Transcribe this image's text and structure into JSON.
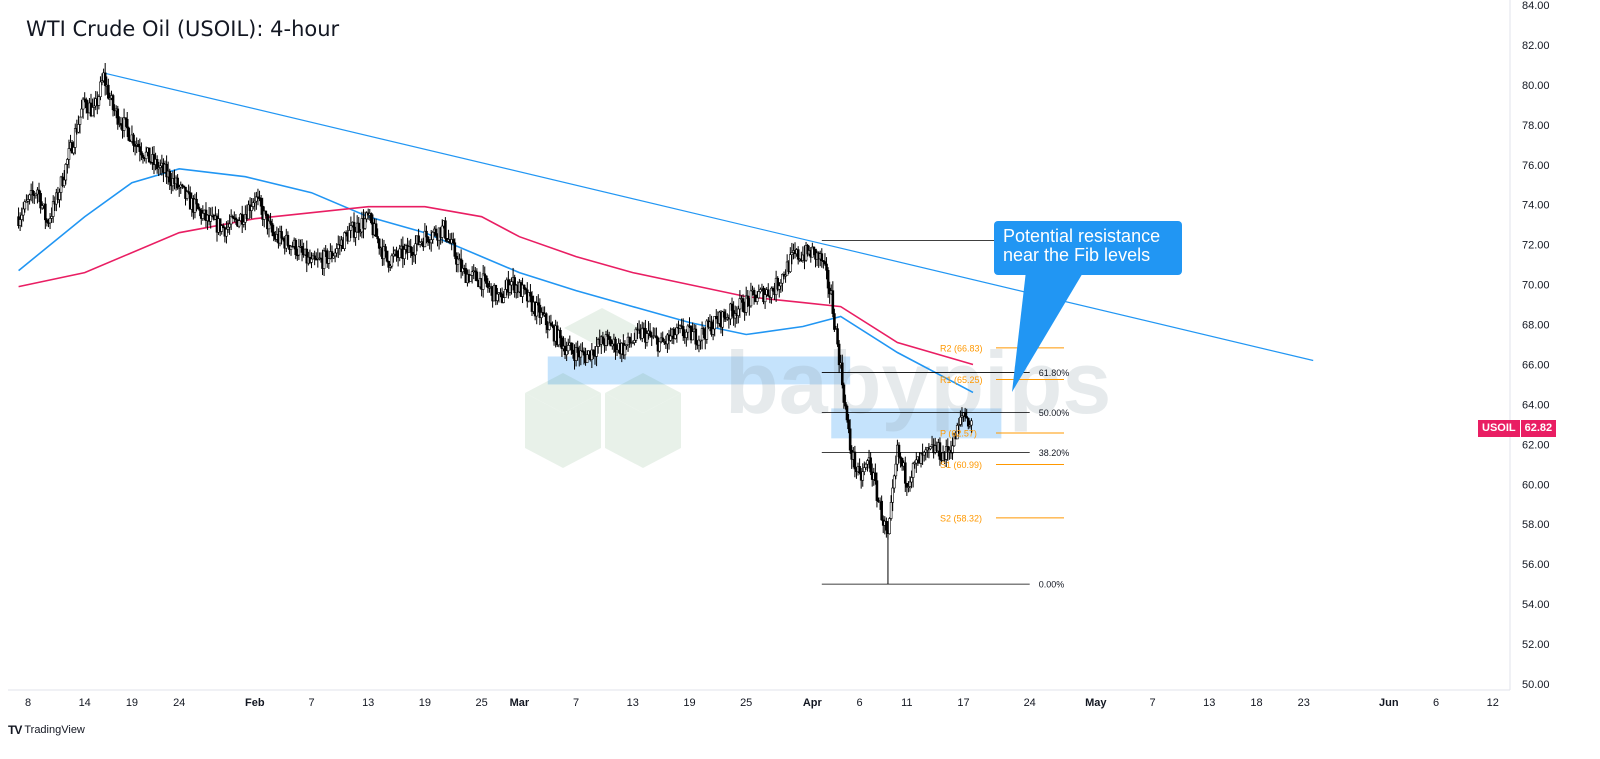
{
  "title": "WTI Crude Oil (USOIL): 4-hour",
  "brand": {
    "logo": "TV",
    "name": "TradingView"
  },
  "watermark": "babypips",
  "callout": {
    "line1": "Potential resistance",
    "line2": "near the Fib levels"
  },
  "last_price": {
    "symbol": "USOIL",
    "value": "62.82",
    "color": "#e91e63"
  },
  "colors": {
    "sma100": "#2196f3",
    "sma200": "#e91e63",
    "trendline": "#2196f3",
    "pivot": "#ff9800",
    "zone": "#bbdefb",
    "up": "#ffffff",
    "down": "#000000"
  },
  "chart_data": {
    "type": "candlestick",
    "title": "WTI Crude Oil (USOIL): 4-hour",
    "ylim": [
      50,
      84
    ],
    "y_ticks": [
      "50.00",
      "52.00",
      "54.00",
      "56.00",
      "58.00",
      "60.00",
      "62.00",
      "64.00",
      "66.00",
      "68.00",
      "70.00",
      "72.00",
      "74.00",
      "76.00",
      "78.00",
      "80.00",
      "82.00",
      "84.00"
    ],
    "x_ticks": [
      {
        "label": "8",
        "date": "2025-01-08"
      },
      {
        "label": "14",
        "date": "2025-01-14"
      },
      {
        "label": "19",
        "date": "2025-01-19"
      },
      {
        "label": "24",
        "date": "2025-01-24"
      },
      {
        "label": "Feb",
        "date": "2025-02-01"
      },
      {
        "label": "7",
        "date": "2025-02-07"
      },
      {
        "label": "13",
        "date": "2025-02-13"
      },
      {
        "label": "19",
        "date": "2025-02-19"
      },
      {
        "label": "25",
        "date": "2025-02-25"
      },
      {
        "label": "Mar",
        "date": "2025-03-01"
      },
      {
        "label": "7",
        "date": "2025-03-07"
      },
      {
        "label": "13",
        "date": "2025-03-13"
      },
      {
        "label": "19",
        "date": "2025-03-19"
      },
      {
        "label": "25",
        "date": "2025-03-25"
      },
      {
        "label": "Apr",
        "date": "2025-04-01"
      },
      {
        "label": "6",
        "date": "2025-04-06"
      },
      {
        "label": "11",
        "date": "2025-04-11"
      },
      {
        "label": "17",
        "date": "2025-04-17"
      },
      {
        "label": "24",
        "date": "2025-04-24"
      },
      {
        "label": "May",
        "date": "2025-05-01"
      },
      {
        "label": "7",
        "date": "2025-05-07"
      },
      {
        "label": "13",
        "date": "2025-05-13"
      },
      {
        "label": "18",
        "date": "2025-05-18"
      },
      {
        "label": "23",
        "date": "2025-05-23"
      },
      {
        "label": "Jun",
        "date": "2025-06-01"
      },
      {
        "label": "6",
        "date": "2025-06-06"
      },
      {
        "label": "12",
        "date": "2025-06-12"
      }
    ],
    "price_path": [
      [
        "2025-01-07",
        73.4
      ],
      [
        "2025-01-09",
        74.8
      ],
      [
        "2025-01-10",
        73.1
      ],
      [
        "2025-01-11",
        74.2
      ],
      [
        "2025-01-13",
        77.6
      ],
      [
        "2025-01-14",
        79.2
      ],
      [
        "2025-01-15",
        78.6
      ],
      [
        "2025-01-16",
        80.4
      ],
      [
        "2025-01-17",
        78.8
      ],
      [
        "2025-01-19",
        77.4
      ],
      [
        "2025-01-21",
        76.2
      ],
      [
        "2025-01-23",
        75.4
      ],
      [
        "2025-01-25",
        74.2
      ],
      [
        "2025-01-27",
        73.2
      ],
      [
        "2025-01-29",
        72.8
      ],
      [
        "2025-01-31",
        73.6
      ],
      [
        "2025-02-01",
        74.4
      ],
      [
        "2025-02-03",
        72.4
      ],
      [
        "2025-02-05",
        72.0
      ],
      [
        "2025-02-07",
        71.0
      ],
      [
        "2025-02-09",
        71.4
      ],
      [
        "2025-02-11",
        72.6
      ],
      [
        "2025-02-13",
        73.3
      ],
      [
        "2025-02-15",
        71.2
      ],
      [
        "2025-02-17",
        71.6
      ],
      [
        "2025-02-19",
        72.4
      ],
      [
        "2025-02-21",
        72.8
      ],
      [
        "2025-02-23",
        70.6
      ],
      [
        "2025-02-25",
        70.2
      ],
      [
        "2025-02-27",
        69.2
      ],
      [
        "2025-02-28",
        70.2
      ],
      [
        "2025-03-01",
        69.8
      ],
      [
        "2025-03-03",
        68.6
      ],
      [
        "2025-03-05",
        67.4
      ],
      [
        "2025-03-06",
        66.8
      ],
      [
        "2025-03-08",
        66.4
      ],
      [
        "2025-03-10",
        67.2
      ],
      [
        "2025-03-12",
        66.8
      ],
      [
        "2025-03-14",
        67.6
      ],
      [
        "2025-03-16",
        67.0
      ],
      [
        "2025-03-18",
        67.6
      ],
      [
        "2025-03-20",
        67.4
      ],
      [
        "2025-03-22",
        68.2
      ],
      [
        "2025-03-24",
        68.8
      ],
      [
        "2025-03-26",
        69.4
      ],
      [
        "2025-03-28",
        69.8
      ],
      [
        "2025-03-30",
        71.4
      ],
      [
        "2025-04-01",
        71.6
      ],
      [
        "2025-04-02",
        71.2
      ],
      [
        "2025-04-03",
        69.4
      ],
      [
        "2025-04-04",
        65.8
      ],
      [
        "2025-04-05",
        61.8
      ],
      [
        "2025-04-06",
        60.2
      ],
      [
        "2025-04-07",
        61.2
      ],
      [
        "2025-04-08",
        59.2
      ],
      [
        "2025-04-09",
        57.2
      ],
      [
        "2025-04-10",
        61.6
      ],
      [
        "2025-04-11",
        60.2
      ],
      [
        "2025-04-12",
        61.0
      ],
      [
        "2025-04-14",
        61.8
      ],
      [
        "2025-04-15",
        61.4
      ],
      [
        "2025-04-16",
        62.2
      ],
      [
        "2025-04-17",
        63.6
      ],
      [
        "2025-04-18",
        62.82
      ]
    ],
    "series": [
      {
        "name": "SMA 100",
        "type": "line",
        "color": "#2196f3",
        "points": [
          [
            "2025-01-07",
            70.7
          ],
          [
            "2025-01-14",
            73.4
          ],
          [
            "2025-01-19",
            75.1
          ],
          [
            "2025-01-24",
            75.8
          ],
          [
            "2025-01-31",
            75.4
          ],
          [
            "2025-02-07",
            74.6
          ],
          [
            "2025-02-13",
            73.4
          ],
          [
            "2025-02-19",
            72.6
          ],
          [
            "2025-02-25",
            71.4
          ],
          [
            "2025-03-01",
            70.6
          ],
          [
            "2025-03-07",
            69.7
          ],
          [
            "2025-03-13",
            68.9
          ],
          [
            "2025-03-19",
            68.1
          ],
          [
            "2025-03-25",
            67.5
          ],
          [
            "2025-03-31",
            67.9
          ],
          [
            "2025-04-04",
            68.4
          ],
          [
            "2025-04-10",
            66.6
          ],
          [
            "2025-04-18",
            64.6
          ]
        ]
      },
      {
        "name": "SMA 200",
        "type": "line",
        "color": "#e91e63",
        "points": [
          [
            "2025-01-07",
            69.9
          ],
          [
            "2025-01-14",
            70.6
          ],
          [
            "2025-01-24",
            72.6
          ],
          [
            "2025-02-01",
            73.3
          ],
          [
            "2025-02-07",
            73.6
          ],
          [
            "2025-02-13",
            73.9
          ],
          [
            "2025-02-19",
            73.9
          ],
          [
            "2025-02-25",
            73.4
          ],
          [
            "2025-03-01",
            72.4
          ],
          [
            "2025-03-07",
            71.4
          ],
          [
            "2025-03-13",
            70.6
          ],
          [
            "2025-03-19",
            70.0
          ],
          [
            "2025-03-25",
            69.4
          ],
          [
            "2025-03-31",
            69.1
          ],
          [
            "2025-04-04",
            68.9
          ],
          [
            "2025-04-10",
            67.1
          ],
          [
            "2025-04-18",
            66.0
          ]
        ]
      },
      {
        "name": "Trendline",
        "type": "line",
        "color": "#2196f3",
        "points": [
          [
            "2025-01-16",
            80.6
          ],
          [
            "2025-05-24",
            66.2
          ]
        ]
      }
    ],
    "fibonacci": {
      "from_date": "2025-04-02",
      "to_date": "2025-04-24",
      "levels": [
        {
          "label": "61.80%",
          "price": 65.6
        },
        {
          "label": "50.00%",
          "price": 63.6
        },
        {
          "label": "38.20%",
          "price": 61.6
        },
        {
          "label": "0.00%",
          "price": 55.0
        }
      ],
      "swing_high": {
        "price": 72.2,
        "from_date": "2025-04-02",
        "to_date": "2025-04-24"
      }
    },
    "pivots": [
      {
        "label": "R2 (66.83)",
        "price": 66.83
      },
      {
        "label": "R1 (65.25)",
        "price": 65.25
      },
      {
        "label": "P (62.57)",
        "price": 62.57
      },
      {
        "label": "S1 (60.99)",
        "price": 60.99
      },
      {
        "label": "S2 (58.32)",
        "price": 58.32
      }
    ],
    "zones": [
      {
        "from_date": "2025-03-04",
        "to_date": "2025-04-05",
        "low": 65.0,
        "high": 66.4
      },
      {
        "from_date": "2025-04-03",
        "to_date": "2025-04-21",
        "low": 62.3,
        "high": 63.8
      }
    ],
    "last_price": 62.82
  }
}
